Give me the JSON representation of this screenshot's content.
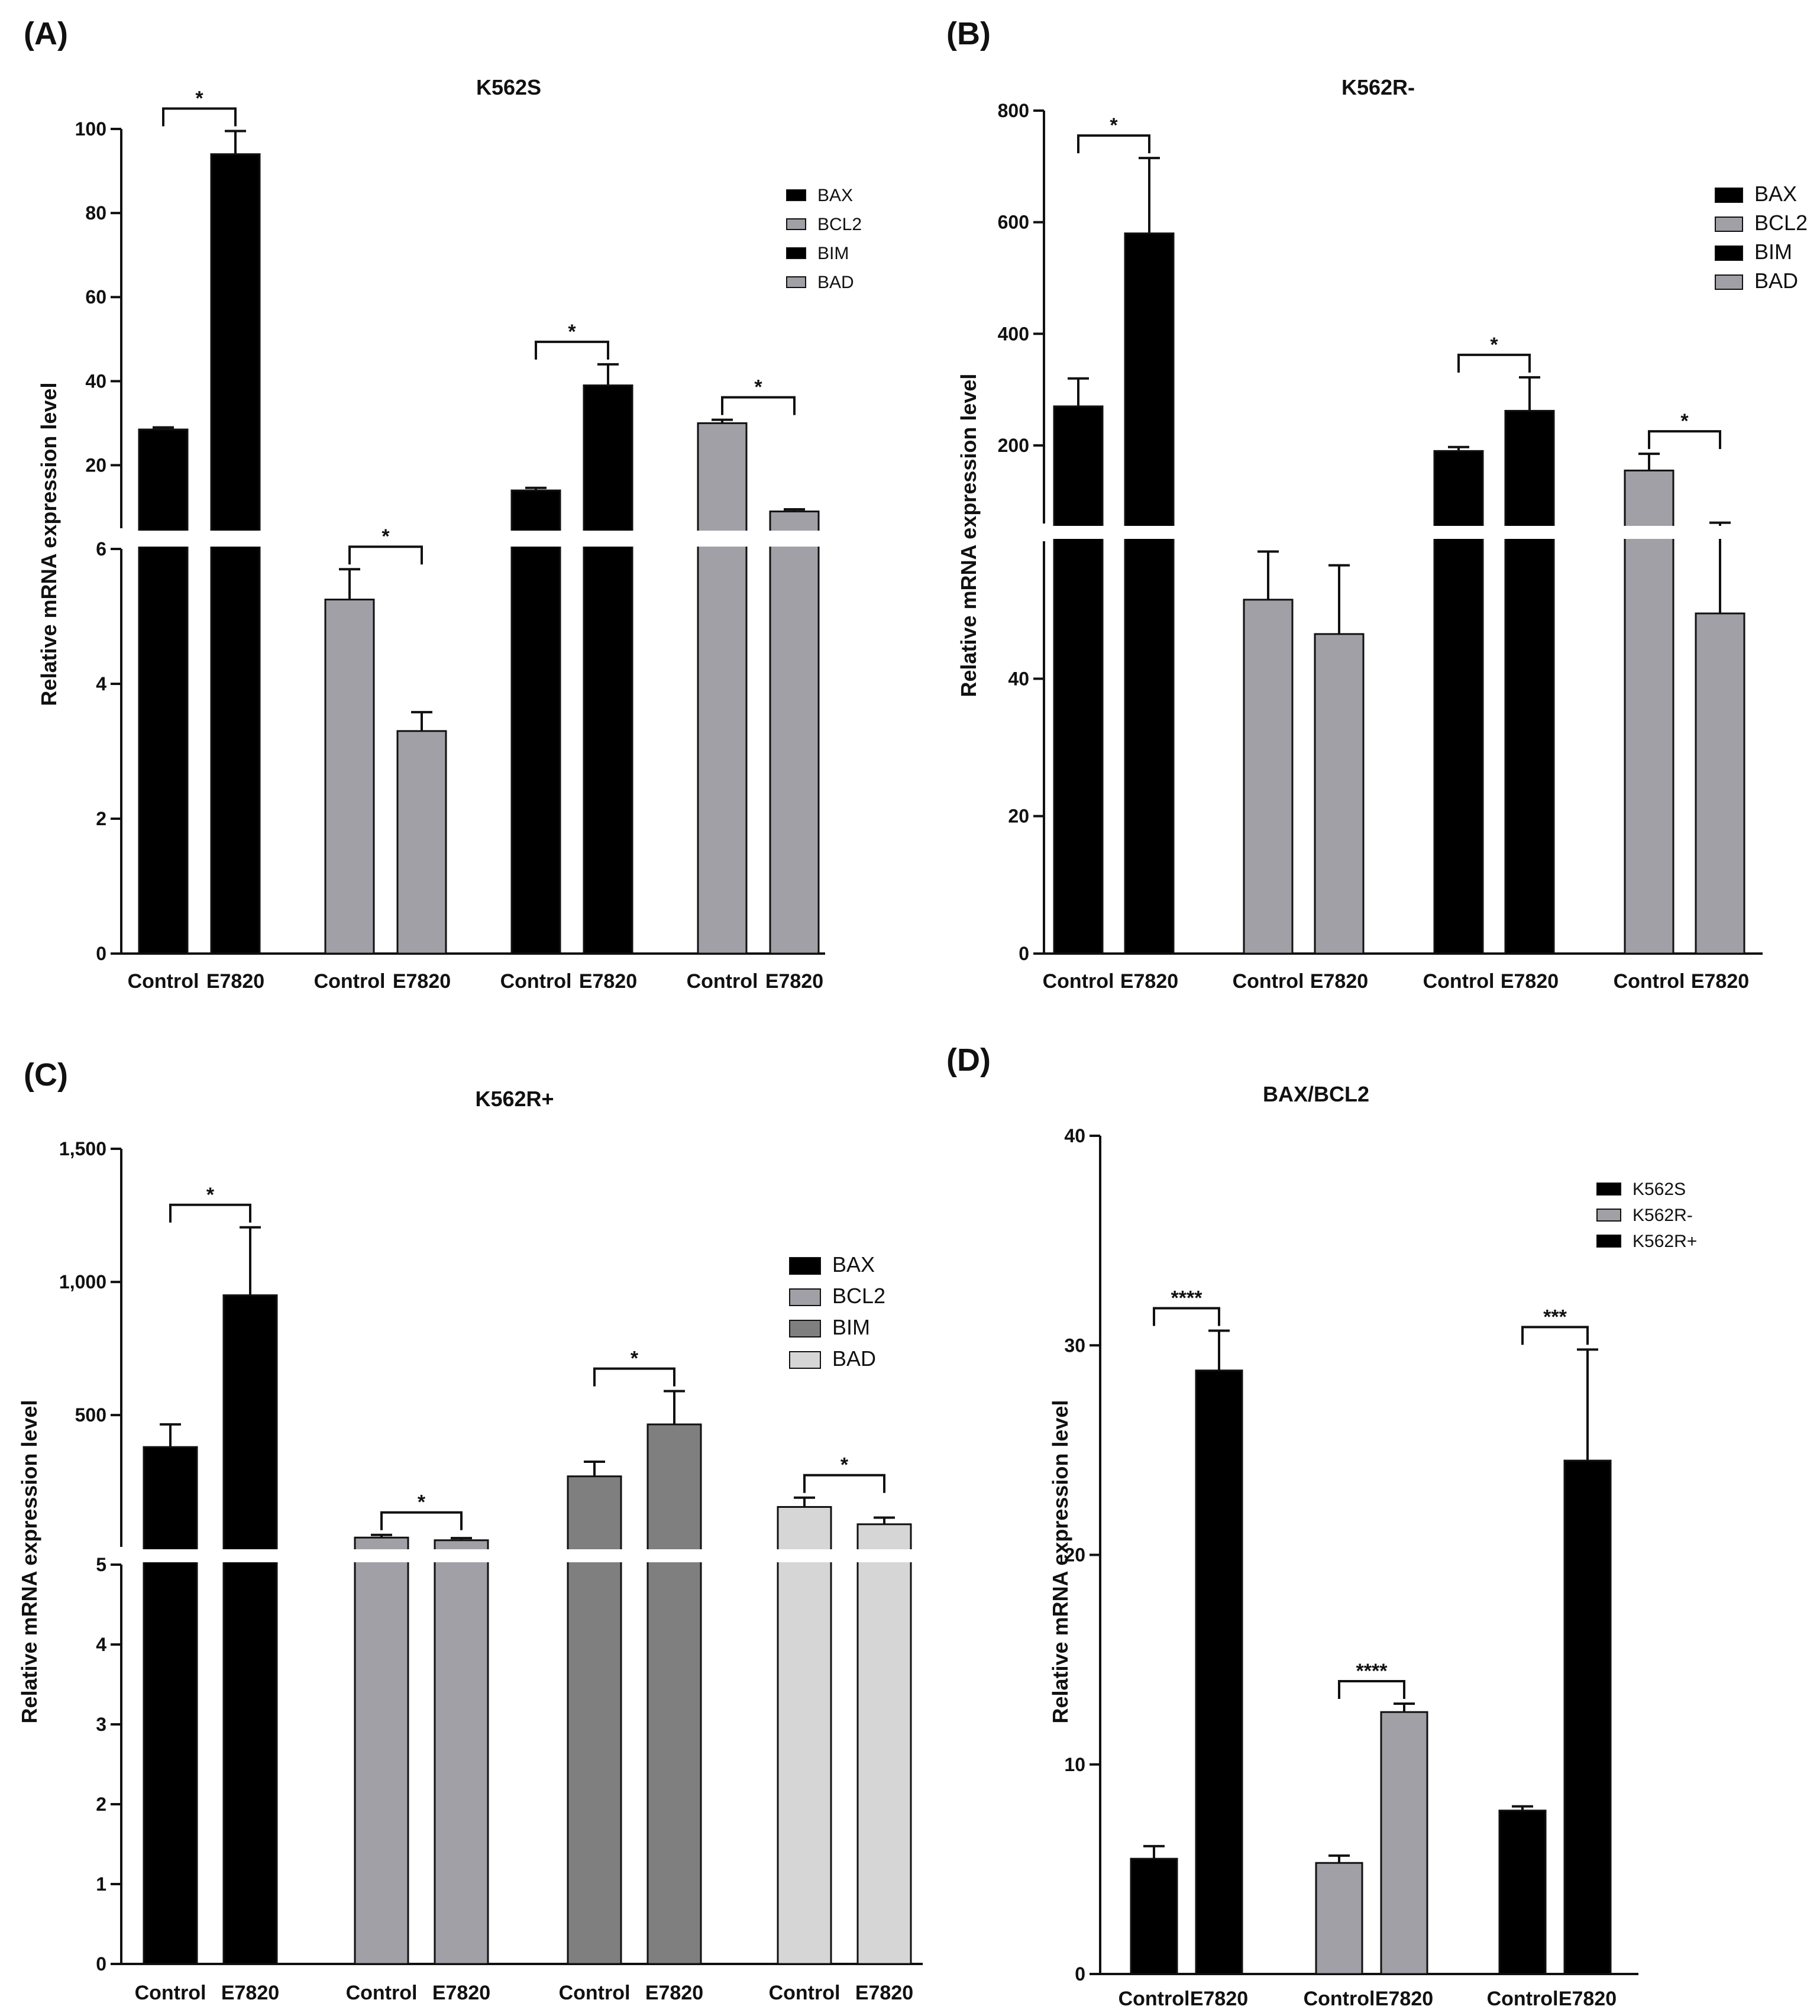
{
  "chart_data": [
    {
      "panel": "(A)",
      "type": "bar",
      "title": "K562S",
      "ylabel": "Relative mRNA expression level",
      "xlabel": "",
      "axis_break": true,
      "lower_ylim": [
        0,
        6
      ],
      "lower_ticks": [
        "0",
        "2",
        "4",
        "6"
      ],
      "upper_ylim": [
        5,
        100
      ],
      "upper_ticks": [
        "20",
        "40",
        "60",
        "80",
        "100"
      ],
      "legend": [
        "BAX",
        "BCL2",
        "BIM",
        "BAD"
      ],
      "categories": [
        "Control",
        "E7820",
        "Control",
        "E7820",
        "Control",
        "E7820",
        "Control",
        "E7820"
      ],
      "groups": [
        {
          "gene": "BAX",
          "color": "#000000",
          "control": 28.5,
          "control_err": 0.5,
          "e7820": 94,
          "e7820_err": 5.5,
          "sig": "*"
        },
        {
          "gene": "BCL2",
          "color": "#a0a0a6",
          "control": 5.25,
          "control_err": 0.45,
          "e7820": 3.3,
          "e7820_err": 0.28,
          "sig": "*"
        },
        {
          "gene": "BIM",
          "color": "#000000",
          "control": 14,
          "control_err": 0.6,
          "e7820": 39,
          "e7820_err": 5,
          "sig": "*"
        },
        {
          "gene": "BAD",
          "color": "#a0a0a6",
          "control": 30,
          "control_err": 0.8,
          "e7820": 9,
          "e7820_err": 0.5,
          "sig": "*"
        }
      ]
    },
    {
      "panel": "(B)",
      "type": "bar",
      "title": "K562R-",
      "ylabel": "Relative mRNA expression level",
      "xlabel": "",
      "axis_break": true,
      "lower_ylim": [
        0,
        60
      ],
      "lower_ticks": [
        "0",
        "20",
        "40"
      ],
      "upper_ylim": [
        60,
        800
      ],
      "upper_ticks": [
        "200",
        "400",
        "600",
        "800"
      ],
      "legend": [
        "BAX",
        "BCL2",
        "BIM",
        "BAD"
      ],
      "categories": [
        "Control",
        "E7820",
        "Control",
        "E7820",
        "Control",
        "E7820",
        "Control",
        "E7820"
      ],
      "groups": [
        {
          "gene": "BAX",
          "color": "#000000",
          "control": 270,
          "control_err": 50,
          "e7820": 580,
          "e7820_err": 135,
          "sig": "*"
        },
        {
          "gene": "BCL2",
          "color": "#a0a0a6",
          "control": 51.5,
          "control_err": 7,
          "e7820": 46.5,
          "e7820_err": 10,
          "sig": ""
        },
        {
          "gene": "BIM",
          "color": "#000000",
          "control": 190,
          "control_err": 7,
          "e7820": 262,
          "e7820_err": 60,
          "sig": "*"
        },
        {
          "gene": "BAD",
          "color": "#a0a0a6",
          "control": 155,
          "control_err": 30,
          "e7820": 49.5,
          "e7820_err": 12,
          "sig": "*"
        }
      ]
    },
    {
      "panel": "(C)",
      "type": "bar",
      "title": "K562R+",
      "ylabel": "Relative mRNA expression level",
      "xlabel": "",
      "axis_break": true,
      "lower_ylim": [
        0,
        5
      ],
      "lower_ticks": [
        "0",
        "1",
        "2",
        "3",
        "4",
        "5"
      ],
      "upper_ylim": [
        5,
        1500
      ],
      "upper_ticks": [
        "500",
        "1,000",
        "1,500"
      ],
      "legend": [
        "BAX",
        "BCL2",
        "BIM",
        "BAD"
      ],
      "categories": [
        "Control",
        "E7820",
        "Control",
        "E7820",
        "Control",
        "E7820",
        "Control",
        "E7820"
      ],
      "groups": [
        {
          "gene": "BAX",
          "color": "#000000",
          "control": 380,
          "control_err": 85,
          "e7820": 950,
          "e7820_err": 255,
          "sig": "*"
        },
        {
          "gene": "BCL2",
          "color": "#a0a0a6",
          "control": 40,
          "control_err": 10,
          "e7820": 30,
          "e7820_err": 8,
          "sig": "*"
        },
        {
          "gene": "BIM",
          "color": "#7f7f7f",
          "control": 270,
          "control_err": 55,
          "e7820": 465,
          "e7820_err": 125,
          "sig": "*"
        },
        {
          "gene": "BAD",
          "color": "#d6d6d6",
          "control": 155,
          "control_err": 35,
          "e7820": 90,
          "e7820_err": 25,
          "sig": "*"
        }
      ]
    },
    {
      "panel": "(D)",
      "type": "bar",
      "title": "BAX/BCL2",
      "ylabel": "Relative mRNA expression level",
      "xlabel": "",
      "axis_break": false,
      "ylim": [
        0,
        40
      ],
      "ticks": [
        "0",
        "10",
        "20",
        "30",
        "40"
      ],
      "legend": [
        "K562S",
        "K562R-",
        "K562R+"
      ],
      "categories": [
        "Control",
        "E7820",
        "Control",
        "E7820",
        "Control",
        "E7820"
      ],
      "groups": [
        {
          "cell_line": "K562S",
          "color": "#000000",
          "control": 5.5,
          "control_err": 0.6,
          "e7820": 28.8,
          "e7820_err": 1.9,
          "sig": "****"
        },
        {
          "cell_line": "K562R-",
          "color": "#a0a0a6",
          "control": 5.3,
          "control_err": 0.35,
          "e7820": 12.5,
          "e7820_err": 0.4,
          "sig": "****"
        },
        {
          "cell_line": "K562R+",
          "color": "#000000",
          "control": 7.8,
          "control_err": 0.2,
          "e7820": 24.5,
          "e7820_err": 5.3,
          "sig": "***"
        }
      ]
    }
  ]
}
